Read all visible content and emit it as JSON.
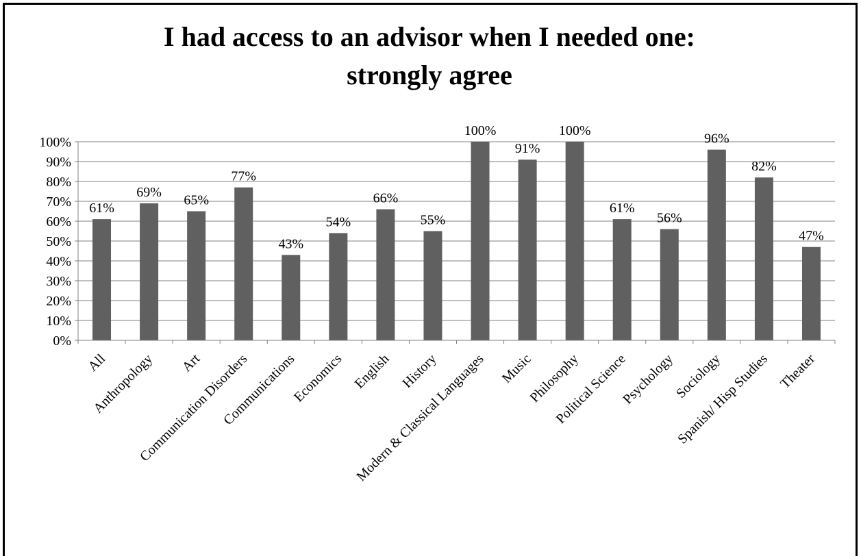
{
  "chart_data": {
    "type": "bar",
    "title_lines": [
      "I had access to an advisor when I needed one:",
      "strongly agree"
    ],
    "xlabel": "",
    "ylabel": "",
    "ylim": [
      0,
      100
    ],
    "y_ticks": [
      0,
      10,
      20,
      30,
      40,
      50,
      60,
      70,
      80,
      90,
      100
    ],
    "y_tick_labels": [
      "0%",
      "10%",
      "20%",
      "30%",
      "40%",
      "50%",
      "60%",
      "70%",
      "80%",
      "90%",
      "100%"
    ],
    "grid": true,
    "legend": "none",
    "bar_color": "#606060",
    "categories": [
      "All",
      "Anthropology",
      "Art",
      "Communication Disorders",
      "Communications",
      "Economics",
      "English",
      "History",
      "Modern & Classical Languages",
      "Music",
      "Philosophy",
      "Political Science",
      "Psychology",
      "Sociology",
      "Spanish/ Hisp Studies",
      "Theater"
    ],
    "values": [
      61,
      69,
      65,
      77,
      43,
      54,
      66,
      55,
      100,
      91,
      100,
      61,
      56,
      96,
      82,
      47
    ],
    "data_labels": [
      "61%",
      "69%",
      "65%",
      "77%",
      "43%",
      "54%",
      "66%",
      "55%",
      "100%",
      "91%",
      "100%",
      "61%",
      "56%",
      "96%",
      "82%",
      "47%"
    ]
  }
}
